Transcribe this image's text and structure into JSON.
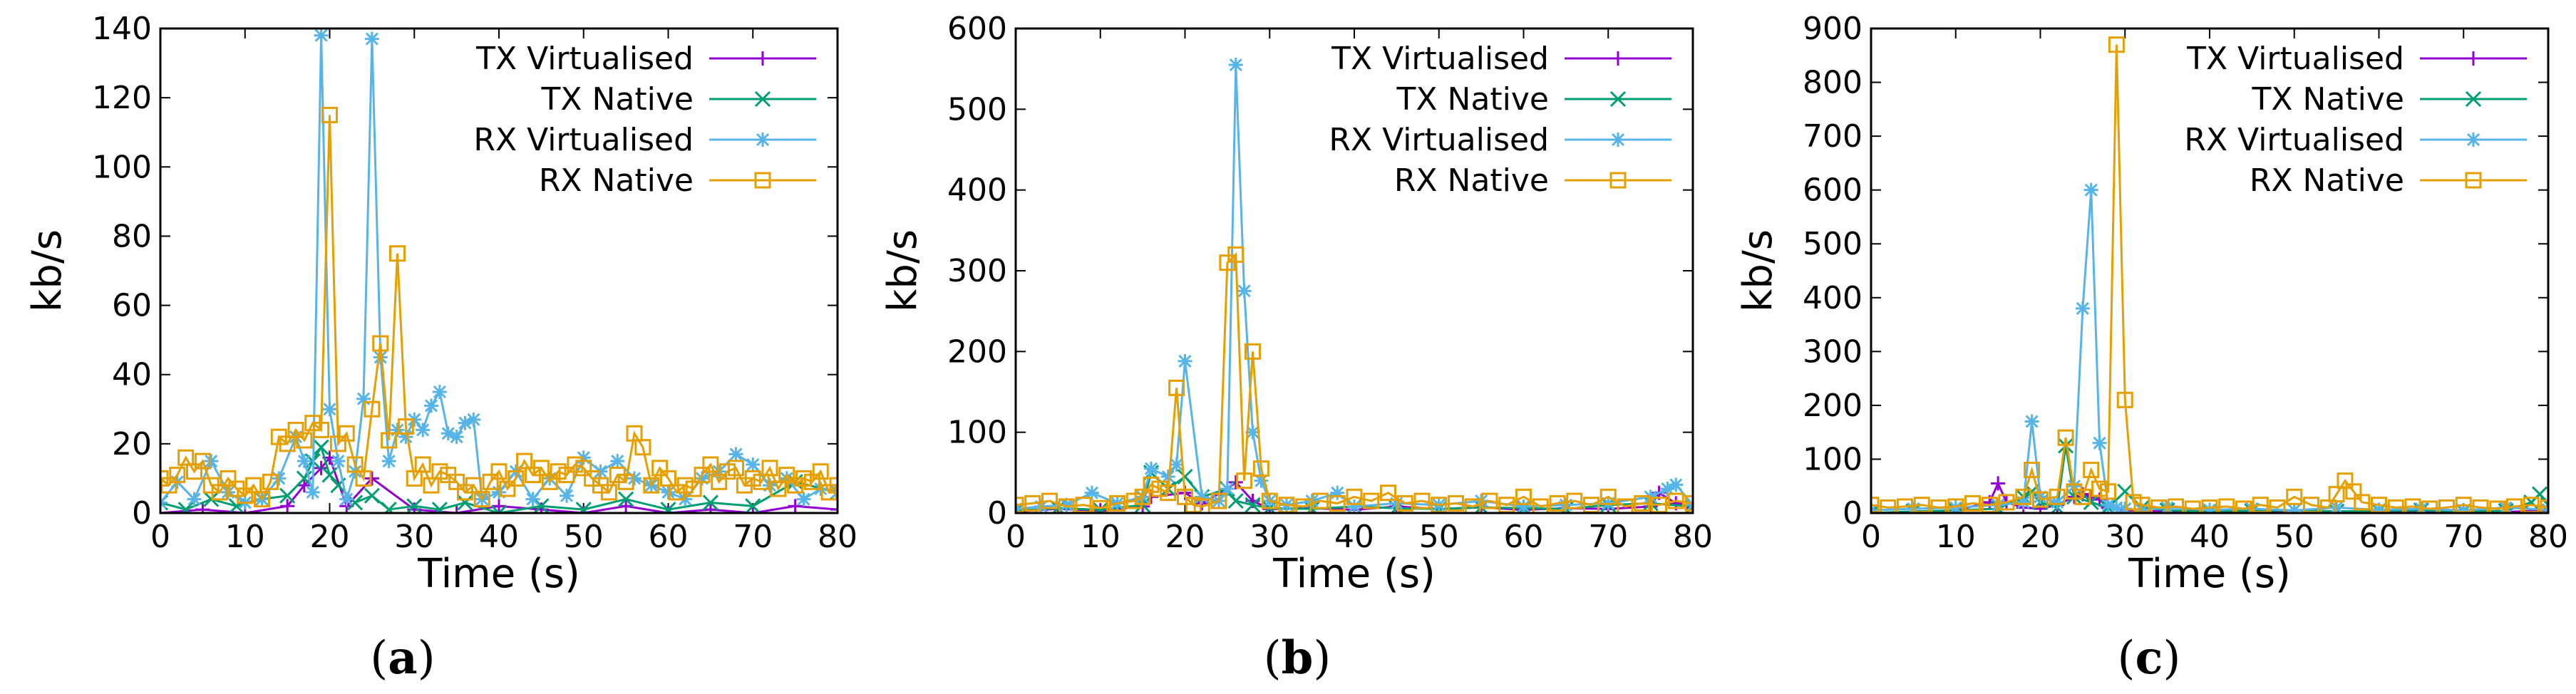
{
  "figure": {
    "captions": [
      "(a)",
      "(b)",
      "(c)"
    ],
    "captions_open": "(",
    "captions_letters": [
      "a",
      "b",
      "c"
    ],
    "captions_close": ")"
  },
  "series_styles": {
    "TX Virtualised": {
      "color": "#9400d3",
      "marker": "plus"
    },
    "TX Native": {
      "color": "#009e73",
      "marker": "cross"
    },
    "RX Virtualised": {
      "color": "#56b4e9",
      "marker": "star"
    },
    "RX Native": {
      "color": "#e69f00",
      "marker": "square"
    }
  },
  "chart_data": [
    {
      "type": "line",
      "panel": "(a)",
      "xlabel": "Time (s)",
      "ylabel": "kb/s",
      "xlim": [
        0,
        80
      ],
      "ylim": [
        0,
        140
      ],
      "xticks": [
        0,
        10,
        20,
        30,
        40,
        50,
        60,
        70,
        80
      ],
      "yticks": [
        0,
        20,
        40,
        60,
        80,
        100,
        120,
        140
      ],
      "legend_position": "top-right",
      "legend": [
        "TX Virtualised",
        "TX Native",
        "RX Virtualised",
        "RX Native"
      ],
      "series": [
        {
          "name": "TX Virtualised",
          "x": [
            0,
            5,
            10,
            15,
            17,
            19,
            20,
            22,
            25,
            30,
            35,
            40,
            45,
            50,
            55,
            60,
            65,
            70,
            75,
            80
          ],
          "y": [
            0,
            1,
            0,
            2,
            8,
            13,
            16,
            2,
            10,
            1,
            0,
            2,
            1,
            0,
            2,
            0,
            1,
            0,
            2,
            1
          ]
        },
        {
          "name": "TX Native",
          "x": [
            0,
            3,
            6,
            9,
            12,
            15,
            17,
            18,
            19,
            20,
            21,
            23,
            25,
            27,
            30,
            33,
            36,
            40,
            45,
            50,
            55,
            60,
            65,
            70,
            75,
            80
          ],
          "y": [
            3,
            1,
            4,
            2,
            4,
            5,
            10,
            15,
            19,
            11,
            8,
            3,
            5,
            1,
            2,
            1,
            3,
            0,
            2,
            1,
            4,
            1,
            3,
            2,
            9,
            6
          ]
        },
        {
          "name": "RX Virtualised",
          "x": [
            0,
            2,
            4,
            6,
            8,
            10,
            12,
            14,
            16,
            17,
            18,
            19,
            20,
            21,
            22,
            23,
            24,
            25,
            26,
            27,
            28,
            29,
            30,
            31,
            32,
            33,
            34,
            35,
            36,
            37,
            38,
            40,
            42,
            44,
            46,
            48,
            50,
            52,
            54,
            56,
            58,
            60,
            62,
            64,
            66,
            68,
            70,
            72,
            74,
            76,
            78,
            80
          ],
          "y": [
            3,
            9,
            4,
            15,
            6,
            3,
            4,
            10,
            22,
            15,
            6,
            138,
            30,
            15,
            4,
            12,
            33,
            137,
            45,
            15,
            24,
            22,
            27,
            24,
            31,
            35,
            23,
            22,
            26,
            27,
            4,
            6,
            12,
            4,
            10,
            5,
            16,
            12,
            15,
            10,
            8,
            6,
            4,
            10,
            12,
            17,
            14,
            8,
            10,
            4,
            7,
            6
          ]
        },
        {
          "name": "RX Native",
          "x": [
            0,
            1,
            2,
            3,
            4,
            5,
            6,
            7,
            8,
            9,
            10,
            11,
            12,
            13,
            14,
            15,
            16,
            17,
            18,
            19,
            20,
            21,
            22,
            23,
            24,
            25,
            26,
            27,
            28,
            29,
            30,
            31,
            32,
            33,
            34,
            35,
            36,
            37,
            38,
            39,
            40,
            41,
            42,
            43,
            44,
            45,
            46,
            47,
            48,
            49,
            50,
            51,
            52,
            53,
            54,
            55,
            56,
            57,
            58,
            59,
            60,
            61,
            62,
            63,
            64,
            65,
            66,
            67,
            68,
            69,
            70,
            71,
            72,
            73,
            74,
            75,
            76,
            77,
            78,
            79,
            80
          ],
          "y": [
            10,
            8,
            11,
            16,
            12,
            15,
            8,
            6,
            10,
            7,
            5,
            8,
            4,
            9,
            22,
            20,
            24,
            21,
            26,
            24,
            115,
            20,
            23,
            14,
            10,
            30,
            49,
            21,
            75,
            25,
            10,
            14,
            8,
            12,
            11,
            9,
            6,
            8,
            4,
            9,
            12,
            7,
            10,
            15,
            11,
            13,
            9,
            12,
            11,
            14,
            13,
            10,
            8,
            6,
            11,
            9,
            23,
            19,
            8,
            13,
            10,
            6,
            8,
            7,
            11,
            14,
            9,
            12,
            13,
            8,
            10,
            9,
            13,
            7,
            11,
            8,
            10,
            9,
            12,
            6,
            8
          ]
        }
      ]
    },
    {
      "type": "line",
      "panel": "(b)",
      "xlabel": "Time (s)",
      "ylabel": "kb/s",
      "xlim": [
        0,
        80
      ],
      "ylim": [
        0,
        600
      ],
      "xticks": [
        0,
        10,
        20,
        30,
        40,
        50,
        60,
        70,
        80
      ],
      "yticks": [
        0,
        100,
        200,
        300,
        400,
        500,
        600
      ],
      "legend_position": "top-right",
      "legend": [
        "TX Virtualised",
        "TX Native",
        "RX Virtualised",
        "RX Native"
      ],
      "series": [
        {
          "name": "TX Virtualised",
          "x": [
            0,
            5,
            10,
            15,
            16,
            20,
            22,
            25,
            26,
            28,
            30,
            35,
            40,
            45,
            50,
            55,
            60,
            65,
            70,
            75,
            76,
            78,
            80
          ],
          "y": [
            2,
            5,
            3,
            8,
            20,
            25,
            12,
            30,
            38,
            15,
            5,
            6,
            4,
            8,
            5,
            7,
            4,
            6,
            5,
            8,
            25,
            12,
            6
          ]
        },
        {
          "name": "TX Native",
          "x": [
            0,
            5,
            10,
            15,
            16,
            18,
            20,
            22,
            25,
            26,
            28,
            30,
            35,
            40,
            45,
            50,
            55,
            60,
            65,
            70,
            75,
            80
          ],
          "y": [
            3,
            6,
            4,
            10,
            50,
            30,
            45,
            20,
            30,
            15,
            10,
            6,
            5,
            8,
            6,
            5,
            7,
            6,
            5,
            10,
            12,
            8
          ]
        },
        {
          "name": "RX Virtualised",
          "x": [
            0,
            3,
            6,
            9,
            12,
            15,
            16,
            18,
            19,
            20,
            22,
            24,
            25,
            26,
            27,
            28,
            29,
            30,
            32,
            35,
            38,
            40,
            45,
            50,
            55,
            60,
            65,
            70,
            75,
            77,
            78,
            80
          ],
          "y": [
            5,
            8,
            10,
            25,
            12,
            20,
            55,
            45,
            60,
            188,
            20,
            15,
            30,
            555,
            275,
            100,
            40,
            15,
            10,
            15,
            25,
            8,
            12,
            10,
            15,
            8,
            10,
            12,
            20,
            30,
            35,
            10
          ]
        },
        {
          "name": "RX Native",
          "x": [
            0,
            2,
            4,
            6,
            8,
            10,
            12,
            14,
            15,
            16,
            17,
            18,
            19,
            20,
            21,
            22,
            24,
            25,
            26,
            27,
            28,
            29,
            30,
            32,
            34,
            36,
            38,
            40,
            42,
            44,
            46,
            48,
            50,
            52,
            54,
            56,
            58,
            60,
            62,
            64,
            66,
            68,
            70,
            72,
            74,
            76,
            78,
            80
          ],
          "y": [
            10,
            12,
            15,
            8,
            10,
            6,
            12,
            15,
            20,
            35,
            30,
            25,
            155,
            20,
            10,
            8,
            15,
            310,
            320,
            40,
            200,
            55,
            15,
            10,
            8,
            15,
            12,
            20,
            15,
            25,
            12,
            15,
            10,
            12,
            8,
            15,
            10,
            20,
            8,
            12,
            15,
            10,
            20,
            8,
            12,
            10,
            15,
            12
          ]
        }
      ]
    },
    {
      "type": "line",
      "panel": "(c)",
      "xlabel": "Time (s)",
      "ylabel": "kb/s",
      "xlim": [
        0,
        80
      ],
      "ylim": [
        0,
        900
      ],
      "xticks": [
        0,
        10,
        20,
        30,
        40,
        50,
        60,
        70,
        80
      ],
      "yticks": [
        0,
        100,
        200,
        300,
        400,
        500,
        600,
        700,
        800,
        900
      ],
      "legend_position": "top-right",
      "legend": [
        "TX Virtualised",
        "TX Native",
        "RX Virtualised",
        "RX Native"
      ],
      "series": [
        {
          "name": "TX Virtualised",
          "x": [
            0,
            5,
            10,
            14,
            15,
            16,
            18,
            20,
            22,
            24,
            25,
            26,
            27,
            28,
            30,
            35,
            40,
            45,
            50,
            55,
            60,
            65,
            70,
            75,
            80
          ],
          "y": [
            0,
            2,
            5,
            20,
            55,
            20,
            10,
            8,
            15,
            30,
            35,
            30,
            25,
            10,
            5,
            3,
            4,
            2,
            5,
            3,
            2,
            4,
            3,
            2,
            5
          ]
        },
        {
          "name": "TX Native",
          "x": [
            0,
            5,
            10,
            15,
            18,
            19,
            20,
            22,
            23,
            24,
            26,
            28,
            30,
            32,
            35,
            40,
            45,
            50,
            55,
            60,
            65,
            70,
            75,
            78,
            79,
            80
          ],
          "y": [
            0,
            3,
            5,
            8,
            30,
            40,
            20,
            10,
            125,
            30,
            20,
            10,
            40,
            10,
            5,
            3,
            4,
            5,
            3,
            4,
            5,
            3,
            4,
            20,
            35,
            15
          ]
        },
        {
          "name": "RX Virtualised",
          "x": [
            0,
            5,
            10,
            15,
            18,
            19,
            20,
            22,
            24,
            25,
            26,
            27,
            28,
            29,
            30,
            32,
            35,
            40,
            45,
            50,
            55,
            60,
            65,
            70,
            75,
            80
          ],
          "y": [
            5,
            8,
            10,
            15,
            20,
            170,
            30,
            20,
            50,
            380,
            600,
            130,
            15,
            10,
            8,
            5,
            10,
            6,
            8,
            5,
            10,
            6,
            8,
            5,
            10,
            6
          ]
        },
        {
          "name": "RX Native",
          "x": [
            0,
            2,
            4,
            6,
            8,
            10,
            12,
            14,
            16,
            18,
            19,
            20,
            22,
            23,
            24,
            25,
            26,
            27,
            28,
            29,
            30,
            31,
            32,
            34,
            36,
            38,
            40,
            42,
            44,
            46,
            48,
            50,
            52,
            54,
            55,
            56,
            57,
            58,
            60,
            62,
            64,
            66,
            68,
            70,
            72,
            74,
            76,
            78,
            80
          ],
          "y": [
            15,
            10,
            12,
            15,
            10,
            12,
            18,
            15,
            20,
            30,
            80,
            25,
            30,
            140,
            40,
            30,
            80,
            45,
            40,
            870,
            210,
            20,
            15,
            10,
            12,
            8,
            10,
            12,
            8,
            15,
            10,
            30,
            15,
            10,
            35,
            60,
            40,
            20,
            15,
            10,
            12,
            8,
            10,
            15,
            10,
            8,
            12,
            15,
            10
          ]
        }
      ]
    }
  ]
}
